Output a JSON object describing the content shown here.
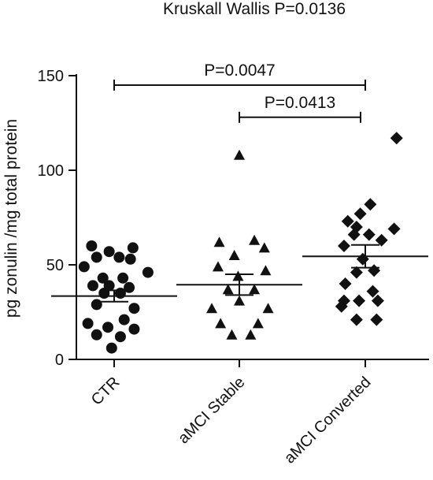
{
  "chart_data": {
    "type": "scatter",
    "title": "Kruskall Wallis P=0.0136",
    "xlabel": "",
    "ylabel": "pg zonulin /mg total protein",
    "ylim": [
      0,
      150
    ],
    "yticks": [
      0,
      50,
      100,
      150
    ],
    "grid": false,
    "categories": [
      "CTR",
      "aMCI Stable",
      "aMCI Converted"
    ],
    "series": [
      {
        "name": "CTR",
        "marker": "circle",
        "mean": 33.5,
        "sem": 3,
        "points": [
          {
            "dx": -0.18,
            "y": 60
          },
          {
            "dx": 0.15,
            "y": 59
          },
          {
            "dx": -0.04,
            "y": 57
          },
          {
            "dx": -0.14,
            "y": 54
          },
          {
            "dx": 0.04,
            "y": 54
          },
          {
            "dx": 0.13,
            "y": 53
          },
          {
            "dx": -0.24,
            "y": 49
          },
          {
            "dx": 0.27,
            "y": 46
          },
          {
            "dx": -0.09,
            "y": 43
          },
          {
            "dx": 0.07,
            "y": 43
          },
          {
            "dx": -0.17,
            "y": 39
          },
          {
            "dx": -0.04,
            "y": 39
          },
          {
            "dx": 0.12,
            "y": 38
          },
          {
            "dx": -0.08,
            "y": 35
          },
          {
            "dx": 0.05,
            "y": 35
          },
          {
            "dx": -0.14,
            "y": 29
          },
          {
            "dx": 0.16,
            "y": 27
          },
          {
            "dx": -0.21,
            "y": 19
          },
          {
            "dx": 0.08,
            "y": 21
          },
          {
            "dx": -0.05,
            "y": 17
          },
          {
            "dx": 0.16,
            "y": 16
          },
          {
            "dx": -0.14,
            "y": 13
          },
          {
            "dx": 0.05,
            "y": 12
          },
          {
            "dx": -0.02,
            "y": 6
          }
        ]
      },
      {
        "name": "aMCI Stable",
        "marker": "triangle",
        "mean": 39.5,
        "sem": 5.5,
        "points": [
          {
            "dx": 0.0,
            "y": 108
          },
          {
            "dx": -0.16,
            "y": 62
          },
          {
            "dx": 0.12,
            "y": 63
          },
          {
            "dx": 0.2,
            "y": 59
          },
          {
            "dx": -0.04,
            "y": 55
          },
          {
            "dx": -0.17,
            "y": 49
          },
          {
            "dx": 0.21,
            "y": 47
          },
          {
            "dx": -0.01,
            "y": 44
          },
          {
            "dx": -0.09,
            "y": 37
          },
          {
            "dx": 0.12,
            "y": 37
          },
          {
            "dx": 0.0,
            "y": 31
          },
          {
            "dx": -0.22,
            "y": 27
          },
          {
            "dx": 0.23,
            "y": 27
          },
          {
            "dx": -0.15,
            "y": 19
          },
          {
            "dx": 0.15,
            "y": 19
          },
          {
            "dx": -0.06,
            "y": 13
          },
          {
            "dx": 0.09,
            "y": 13
          }
        ]
      },
      {
        "name": "aMCI Converted",
        "marker": "diamond",
        "mean": 54.5,
        "sem": 6,
        "points": [
          {
            "dx": 0.25,
            "y": 117
          },
          {
            "dx": 0.04,
            "y": 82
          },
          {
            "dx": -0.04,
            "y": 77
          },
          {
            "dx": -0.14,
            "y": 73
          },
          {
            "dx": -0.07,
            "y": 70
          },
          {
            "dx": 0.23,
            "y": 69
          },
          {
            "dx": -0.09,
            "y": 66
          },
          {
            "dx": 0.03,
            "y": 66
          },
          {
            "dx": 0.13,
            "y": 63
          },
          {
            "dx": -0.17,
            "y": 60
          },
          {
            "dx": -0.02,
            "y": 53
          },
          {
            "dx": 0.07,
            "y": 47
          },
          {
            "dx": -0.07,
            "y": 46
          },
          {
            "dx": -0.16,
            "y": 40
          },
          {
            "dx": 0.06,
            "y": 36
          },
          {
            "dx": -0.17,
            "y": 31
          },
          {
            "dx": -0.05,
            "y": 31
          },
          {
            "dx": 0.1,
            "y": 31
          },
          {
            "dx": -0.19,
            "y": 28
          },
          {
            "dx": -0.07,
            "y": 21
          },
          {
            "dx": 0.09,
            "y": 21
          }
        ]
      }
    ],
    "annotations": [
      {
        "text": "P=0.0047",
        "from": 0,
        "to": 2,
        "y": 145
      },
      {
        "text": "P=0.0413",
        "from": 1,
        "to": 2,
        "y": 128
      }
    ]
  }
}
